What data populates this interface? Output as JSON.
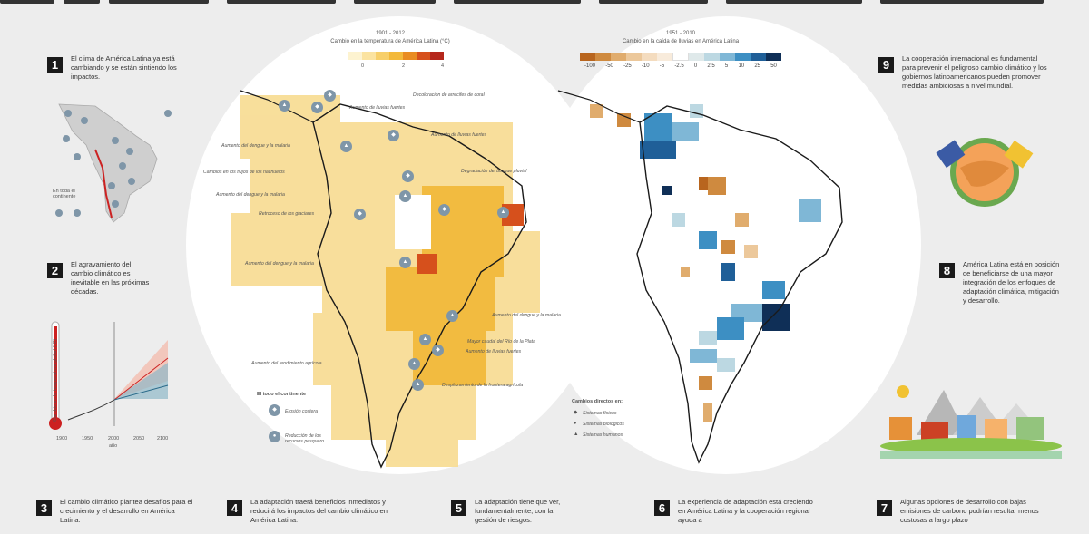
{
  "panels": {
    "p1": {
      "num": "1",
      "text": "El clima de América Latina ya está cambiando y se están sintiendo los impactos."
    },
    "p1_continent": "En toda el continente",
    "p2": {
      "num": "2",
      "text": "El agravamiento del cambio climático es inevitable en las próximas décadas."
    },
    "p2_axis": "Cambio en la temperatura global (°C)",
    "p2_xticks": [
      "1900",
      "1950",
      "2000",
      "2050",
      "2100"
    ],
    "p2_xlabel": "año",
    "p3": {
      "num": "3",
      "text": "El cambio climático plantea desafíos para el crecimiento y el desarrollo en América Latina."
    },
    "p4": {
      "num": "4",
      "text": "La adaptación traerá beneficios inmediatos y reducirá los impactos del cambio climático en América Latina."
    },
    "p5": {
      "num": "5",
      "text": "La adaptación tiene que ver, fundamentalmente, con la gestión de riesgos."
    },
    "p6": {
      "num": "6",
      "text": "La experiencia de adaptación está creciendo en América Latina y la cooperación regional ayuda a"
    },
    "p7": {
      "num": "7",
      "text": "Algunas opciones de desarrollo con bajas emisiones de carbono podrían resultar menos costosas a largo plazo"
    },
    "p8": {
      "num": "8",
      "text": "América Latina está en posición de beneficiarse de una mayor integración de los enfoques de adaptación climática, mitigación y desarrollo."
    },
    "p9": {
      "num": "9",
      "text": "La cooperación internacional es fundamental para prevenir el peligroso cambio climático y los gobiernos latinoamericanos pueden promover medidas ambiciosas a nivel mundial."
    }
  },
  "map_left": {
    "period": "1901 - 2012",
    "title": "Cambio en la temperatura de América Latina (°C)",
    "ticks": [
      "0",
      "2",
      "4"
    ],
    "colors": [
      "#fdf3d0",
      "#fbe3a0",
      "#f7cf6a",
      "#f3b93b",
      "#e98c22",
      "#d6501c",
      "#b5271c"
    ],
    "labels": [
      "Decoloración de arrecifes de coral",
      "Aumento de lluvias fuertes",
      "Aumento de lluvias fuertes",
      "Aumento del dengue y la malaria",
      "Cambios en los flujos de los riachuelos",
      "Degradación del bosque pluvial",
      "Aumento del dengue y la malaria",
      "Retroceso de los glaciares",
      "Aumento del dengue y la malaria",
      "Aumento del dengue y la malaria",
      "Mayor caudal del Río de la Plata",
      "Aumento de lluvias fuertes",
      "Aumento del rendimiento agrícola",
      "Desplazamiento de la frontera agrícola"
    ],
    "legend_title": "El todo el continente",
    "legend_items": [
      "Erosión costera",
      "Reducción de los recursos pesquero"
    ]
  },
  "map_right": {
    "period": "1951 - 2010",
    "title": "Cambio en la caída de lluvias en América Latina",
    "ticks": [
      "-100",
      "-50",
      "-25",
      "-10",
      "-5",
      "-2.5",
      "0",
      "2.5",
      "5",
      "10",
      "25",
      "50"
    ],
    "colors": [
      "#b8651e",
      "#cf8a3f",
      "#e0ac6d",
      "#ecc89b",
      "#f4dcbf",
      "#f8ebdb",
      "#ffffff",
      "#dfe9ea",
      "#bcd8e2",
      "#7fb7d6",
      "#3d8fc3",
      "#1f5f98",
      "#0f2f57"
    ],
    "legend_title": "Cambios directos en:",
    "legend_items": [
      "Sistemas físicos",
      "Sistemas biológicos",
      "Sistemas humanos"
    ]
  }
}
